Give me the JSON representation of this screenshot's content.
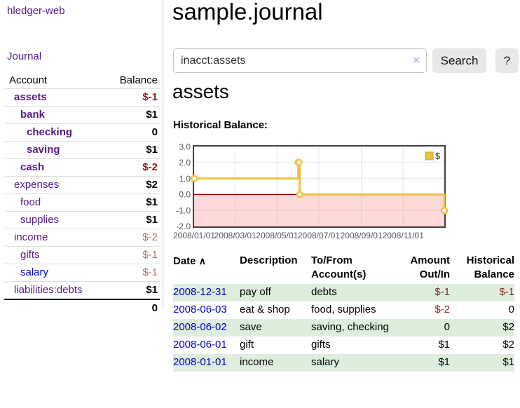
{
  "colors": {
    "link_purple": "#551a8b",
    "link_blue": "#0000cc",
    "negative_strong": "#8b1c1c",
    "negative_soft": "#b36e6e",
    "register_row_green": "#ddeedd",
    "series_gold": "#edc240",
    "zero_line_red": "#8b0000",
    "negative_region_pink": "#fbdbdb"
  },
  "sidebar": {
    "brand": "hledger-web",
    "journal_link": "Journal",
    "table": {
      "headers": {
        "account": "Account",
        "balance": "Balance"
      },
      "accounts": [
        {
          "name": "assets",
          "balance": "$-1"
        },
        {
          "name": "bank",
          "balance": "$1"
        },
        {
          "name": "checking",
          "balance": "0"
        },
        {
          "name": "saving",
          "balance": "$1"
        },
        {
          "name": "cash",
          "balance": "$-2"
        },
        {
          "name": "expenses",
          "balance": "$2"
        },
        {
          "name": "food",
          "balance": "$1"
        },
        {
          "name": "supplies",
          "balance": "$1"
        },
        {
          "name": "income",
          "balance": "$-2"
        },
        {
          "name": "gifts",
          "balance": "$-1"
        },
        {
          "name": "salary",
          "balance": "$-1"
        },
        {
          "name": "liabilities:debts",
          "balance": "$1"
        }
      ],
      "total": "0"
    }
  },
  "header": {
    "title": "sample.journal"
  },
  "search": {
    "query": "inacct:assets",
    "clear_icon": "✕",
    "button_label": "Search",
    "help_label": "?"
  },
  "account_page": {
    "heading": "assets",
    "chart_label": "Historical Balance:"
  },
  "chart_data": {
    "type": "line",
    "style": "step",
    "title": "Historical Balance",
    "legend": {
      "label": "$",
      "position": "top-right"
    },
    "xrange": [
      "2008-01-01",
      "2008-12-31"
    ],
    "ylim": [
      -2,
      3
    ],
    "grid": true,
    "x_ticks": [
      "2008/01/01",
      "2008/03/01",
      "2008/05/01",
      "2008/07/01",
      "2008/09/01",
      "2008/11/01"
    ],
    "y_ticks": [
      "3.0",
      "2.0",
      "1.0",
      "0.0",
      "-1.0",
      "-2.0"
    ],
    "series": [
      {
        "name": "$",
        "color": "#edc240",
        "points": [
          [
            "2008-01-01",
            1
          ],
          [
            "2008-06-01",
            2
          ],
          [
            "2008-06-02",
            2
          ],
          [
            "2008-06-03",
            0
          ],
          [
            "2008-12-31",
            -1
          ]
        ]
      }
    ]
  },
  "register": {
    "headers": {
      "date": "Date",
      "sort_indicator": "∧",
      "description": "Description",
      "accounts": "To/From Account(s)",
      "amount": "Amount Out/In",
      "balance": "Historical Balance"
    },
    "rows": [
      {
        "date": "2008-12-31",
        "description": "pay off",
        "accounts": "debts",
        "amount": "$-1",
        "balance": "$-1"
      },
      {
        "date": "2008-06-03",
        "description": "eat & shop",
        "accounts": "food, supplies",
        "amount": "$-2",
        "balance": "0"
      },
      {
        "date": "2008-06-02",
        "description": "save",
        "accounts": "saving, checking",
        "amount": "0",
        "balance": "$2"
      },
      {
        "date": "2008-06-01",
        "description": "gift",
        "accounts": "gifts",
        "amount": "$1",
        "balance": "$2"
      },
      {
        "date": "2008-01-01",
        "description": "income",
        "accounts": "salary",
        "amount": "$1",
        "balance": "$1"
      }
    ]
  }
}
